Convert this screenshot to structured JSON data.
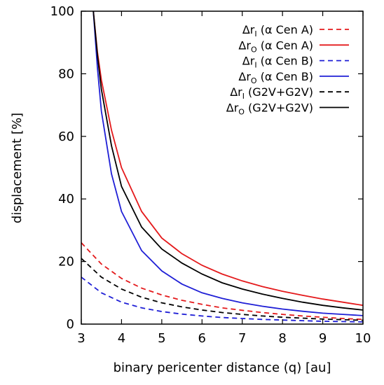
{
  "chart_data": {
    "type": "line",
    "xlabel": "binary pericenter distance (q) [au]",
    "ylabel": "displacement [%]",
    "xlim": [
      3,
      10
    ],
    "ylim": [
      0,
      100
    ],
    "xticks": [
      3,
      4,
      5,
      6,
      7,
      8,
      9,
      10
    ],
    "yticks": [
      0,
      20,
      40,
      60,
      80,
      100
    ],
    "grid": false,
    "legend_position": "top-right",
    "series": [
      {
        "label_main": "Δr",
        "label_sub": "I",
        "label_rest": " (α Cen A)",
        "color": "#e41a1c",
        "style": "dashed",
        "x": [
          3,
          3.5,
          4,
          4.5,
          5,
          5.5,
          6,
          6.5,
          7,
          7.5,
          8,
          8.5,
          9,
          9.5,
          10
        ],
        "y": [
          26,
          19.2,
          14.6,
          11.5,
          9.3,
          7.6,
          6.3,
          5.2,
          4.4,
          3.7,
          3.1,
          2.6,
          2.2,
          1.8,
          1.5
        ]
      },
      {
        "label_main": "Δr",
        "label_sub": "O",
        "label_rest": " (α Cen A)",
        "color": "#e41a1c",
        "style": "solid",
        "x": [
          3.3,
          3.4,
          3.5,
          3.75,
          4,
          4.5,
          5,
          5.5,
          6,
          6.5,
          7,
          7.5,
          8,
          8.5,
          9,
          9.5,
          10
        ],
        "y": [
          100,
          87,
          78,
          62,
          50,
          36,
          27.5,
          22.5,
          18.8,
          16,
          13.8,
          12,
          10.5,
          9.2,
          8,
          7,
          6
        ]
      },
      {
        "label_main": "Δr",
        "label_sub": "I",
        "label_rest": " (α Cen B)",
        "color": "#1f1fd6",
        "style": "dashed",
        "x": [
          3,
          3.5,
          4,
          4.5,
          5,
          5.5,
          6,
          6.5,
          7,
          7.5,
          8,
          8.5,
          9,
          9.5,
          10
        ],
        "y": [
          15,
          10,
          7,
          5.2,
          4,
          3.2,
          2.6,
          2.1,
          1.8,
          1.5,
          1.3,
          1.1,
          0.9,
          0.8,
          0.7
        ]
      },
      {
        "label_main": "Δr",
        "label_sub": "O",
        "label_rest": " (α Cen B)",
        "color": "#1f1fd6",
        "style": "solid",
        "x": [
          3.3,
          3.4,
          3.5,
          3.75,
          4,
          4.5,
          5,
          5.5,
          6,
          6.5,
          7,
          7.5,
          8,
          8.5,
          9,
          9.5,
          10
        ],
        "y": [
          100,
          82,
          68,
          48,
          36,
          23.5,
          17,
          12.8,
          10,
          8.2,
          6.8,
          5.7,
          4.8,
          4.1,
          3.5,
          3.1,
          2.7
        ]
      },
      {
        "label_main": "Δr",
        "label_sub": "I",
        "label_rest": " (G2V+G2V)",
        "color": "#000000",
        "style": "dashed",
        "x": [
          3,
          3.5,
          4,
          4.5,
          5,
          5.5,
          6,
          6.5,
          7,
          7.5,
          8,
          8.5,
          9,
          9.5,
          10
        ],
        "y": [
          21,
          15,
          11.2,
          8.6,
          6.8,
          5.5,
          4.5,
          3.7,
          3.1,
          2.6,
          2.2,
          1.9,
          1.6,
          1.4,
          1.2
        ]
      },
      {
        "label_main": "Δr",
        "label_sub": "O",
        "label_rest": " (G2V+G2V)",
        "color": "#000000",
        "style": "solid",
        "x": [
          3.3,
          3.4,
          3.5,
          3.75,
          4,
          4.5,
          5,
          5.5,
          6,
          6.5,
          7,
          7.5,
          8,
          8.5,
          9,
          9.5,
          10
        ],
        "y": [
          100,
          86,
          75,
          57,
          44,
          31,
          24,
          19.5,
          16,
          13.2,
          11.2,
          9.6,
          8.2,
          7,
          6,
          5.2,
          4.5
        ]
      }
    ]
  }
}
